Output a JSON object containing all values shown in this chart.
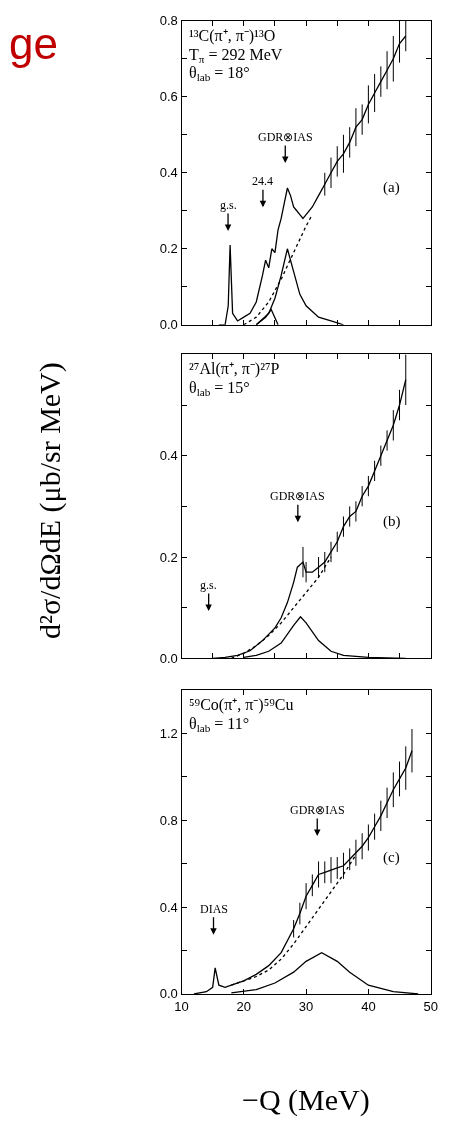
{
  "chart_data": [
    {
      "type": "line",
      "title": "ge",
      "xlim": [
        10,
        50
      ],
      "xticks": [
        10,
        15,
        20,
        25,
        30,
        35,
        40,
        45,
        50
      ],
      "ylim": [
        0,
        0.8
      ],
      "yticks": [
        {
          "value": 0,
          "label": "0.0"
        },
        {
          "value": 0.1,
          "label": null
        },
        {
          "value": 0.2,
          "label": "0.2"
        },
        {
          "value": 0.3,
          "label": null
        },
        {
          "value": 0.4,
          "label": "0.4"
        },
        {
          "value": 0.5,
          "label": null
        },
        {
          "value": 0.6,
          "label": "0.6"
        },
        {
          "value": 0.7,
          "label": null
        },
        {
          "value": 0.8,
          "label": "0.8"
        }
      ],
      "tick_labels": "y",
      "marker": "none",
      "series": [
        {
          "color": "#000000",
          "line_style": "solid",
          "x": [
            16,
            17,
            17.5,
            17.8,
            18.2,
            19,
            20,
            21,
            22,
            23,
            23.5,
            24,
            24.5,
            25,
            25.5,
            26,
            26.5,
            27,
            27.5,
            28,
            28.5,
            29,
            29.5,
            30,
            31,
            32,
            33,
            34,
            35,
            36,
            37,
            38,
            39,
            40,
            41,
            42,
            43,
            44,
            45,
            46
          ],
          "values": [
            0.0,
            0.0,
            0.05,
            0.21,
            0.03,
            0.01,
            0.02,
            0.03,
            0.06,
            0.13,
            0.17,
            0.15,
            0.2,
            0.19,
            0.25,
            0.28,
            0.32,
            0.36,
            0.34,
            0.31,
            0.3,
            0.29,
            0.28,
            0.29,
            0.31,
            0.34,
            0.37,
            0.4,
            0.43,
            0.45,
            0.48,
            0.52,
            0.54,
            0.58,
            0.61,
            0.64,
            0.67,
            0.7,
            0.74,
            0.76
          ],
          "errors": [
            null,
            null,
            null,
            null,
            null,
            null,
            null,
            null,
            null,
            null,
            null,
            null,
            null,
            null,
            null,
            null,
            null,
            null,
            null,
            null,
            null,
            null,
            null,
            null,
            null,
            null,
            0.03,
            0.04,
            0.04,
            0.05,
            0.04,
            0.05,
            0.04,
            0.05,
            0.05,
            0.04,
            0.05,
            0.06,
            0.05,
            0.04
          ]
        },
        {
          "color": "#000000",
          "line_style": "dotted",
          "x": [
            20,
            22,
            24,
            26,
            28,
            30,
            31
          ],
          "values": [
            0.0,
            0.02,
            0.06,
            0.12,
            0.19,
            0.26,
            0.29
          ]
        },
        {
          "color": "#000000",
          "line_style": "solid",
          "x": [
            22,
            23.5,
            24.4,
            25.5
          ],
          "values": [
            0.0,
            0.02,
            0.04,
            0.0
          ]
        },
        {
          "color": "#000000",
          "line_style": "solid",
          "x": [
            22,
            24,
            25,
            26,
            27,
            28,
            29,
            30,
            32,
            34,
            36
          ],
          "values": [
            0.0,
            0.03,
            0.07,
            0.13,
            0.2,
            0.14,
            0.08,
            0.05,
            0.02,
            0.01,
            0.0
          ]
        }
      ],
      "annotations": [
        "¹³C(π⁺, π⁻)¹³O",
        "T$_{π}$ = 292 MeV",
        "θ$_{lab}$ = 18°",
        "(a)",
        "g.s.",
        "24.4",
        "GDR⊗IAS"
      ]
    },
    {
      "type": "line",
      "ylabel": "d²σ/dΩdE (μb/sr MeV)",
      "xlim": [
        10,
        50
      ],
      "xticks": [
        10,
        15,
        20,
        25,
        30,
        35,
        40,
        45,
        50
      ],
      "ylim": [
        0,
        0.6
      ],
      "yticks": [
        {
          "value": 0,
          "label": "0.0"
        },
        {
          "value": 0.1,
          "label": null
        },
        {
          "value": 0.2,
          "label": "0.2"
        },
        {
          "value": 0.3,
          "label": null
        },
        {
          "value": 0.4,
          "label": "0.4"
        },
        {
          "value": 0.5,
          "label": null
        },
        {
          "value": 0.6,
          "label": null
        }
      ],
      "tick_labels": "y",
      "marker": "none",
      "series": [
        {
          "color": "#000000",
          "line_style": "solid",
          "x": [
            15,
            17,
            19,
            21,
            23,
            25,
            26,
            27,
            28,
            28.6,
            29.5,
            30,
            31,
            32,
            33,
            34,
            35,
            36,
            37,
            38,
            39,
            40,
            41,
            42,
            43,
            44,
            45,
            46
          ],
          "values": [
            0.0,
            0.002,
            0.006,
            0.015,
            0.035,
            0.06,
            0.08,
            0.11,
            0.15,
            0.18,
            0.19,
            0.17,
            0.17,
            0.18,
            0.19,
            0.21,
            0.23,
            0.26,
            0.28,
            0.29,
            0.32,
            0.34,
            0.37,
            0.4,
            0.43,
            0.46,
            0.5,
            0.55
          ],
          "errors": [
            null,
            null,
            null,
            null,
            null,
            null,
            null,
            null,
            null,
            null,
            0.03,
            0.02,
            null,
            0.02,
            0.02,
            0.02,
            0.02,
            0.02,
            0.02,
            0.02,
            0.02,
            0.02,
            0.02,
            0.02,
            0.02,
            0.03,
            0.03,
            0.05
          ]
        },
        {
          "color": "#000000",
          "line_style": "dotted",
          "x": [
            18,
            20,
            22,
            24,
            26,
            28,
            30,
            32,
            34
          ],
          "values": [
            0.0,
            0.01,
            0.025,
            0.045,
            0.07,
            0.1,
            0.13,
            0.16,
            0.2
          ]
        },
        {
          "color": "#000000",
          "line_style": "solid",
          "x": [
            20,
            22,
            24,
            26,
            28,
            29.1,
            30,
            32,
            34,
            36,
            40,
            46
          ],
          "values": [
            0.002,
            0.006,
            0.014,
            0.03,
            0.065,
            0.082,
            0.07,
            0.035,
            0.014,
            0.006,
            0.002,
            0.0
          ]
        }
      ],
      "annotations": [
        "²⁷Al(π⁺, π⁻)²⁷P",
        "θ$_{lab}$ = 15°",
        "(b)",
        "g.s.",
        "GDR⊗IAS"
      ]
    },
    {
      "type": "line",
      "xlabel": "−Q (MeV)",
      "xlim": [
        10,
        50
      ],
      "xticks": [
        10,
        20,
        30,
        40,
        50
      ],
      "ylim": [
        0,
        1.4
      ],
      "yticks": [
        {
          "value": 0,
          "label": "0.0"
        },
        {
          "value": 0.2,
          "label": null
        },
        {
          "value": 0.4,
          "label": "0.4"
        },
        {
          "value": 0.6,
          "label": null
        },
        {
          "value": 0.8,
          "label": "0.8"
        },
        {
          "value": 1.0,
          "label": null
        },
        {
          "value": 1.2,
          "label": "1.2"
        },
        {
          "value": 1.4,
          "label": null
        }
      ],
      "marker": "none",
      "series": [
        {
          "color": "#000000",
          "line_style": "solid",
          "x": [
            12,
            14,
            15,
            15.4,
            16,
            17,
            18,
            20,
            22,
            24,
            26,
            28,
            29,
            30,
            31,
            32,
            33,
            34,
            35,
            36,
            37,
            38,
            39,
            40,
            41,
            42,
            43,
            44,
            45,
            46,
            47
          ],
          "values": [
            0.0,
            0.01,
            0.03,
            0.12,
            0.04,
            0.03,
            0.04,
            0.06,
            0.09,
            0.13,
            0.19,
            0.3,
            0.37,
            0.45,
            0.5,
            0.55,
            0.56,
            0.57,
            0.58,
            0.59,
            0.62,
            0.65,
            0.68,
            0.72,
            0.77,
            0.82,
            0.88,
            0.94,
            0.99,
            1.04,
            1.12
          ],
          "errors": [
            null,
            null,
            null,
            null,
            null,
            null,
            null,
            null,
            null,
            null,
            null,
            0.04,
            0.05,
            0.06,
            0.05,
            0.06,
            0.05,
            0.06,
            0.05,
            0.06,
            0.05,
            0.06,
            0.06,
            0.06,
            0.06,
            0.07,
            0.07,
            0.08,
            0.08,
            0.1,
            0.1
          ]
        },
        {
          "color": "#000000",
          "line_style": "dotted",
          "x": [
            18,
            20,
            22,
            24,
            26,
            28,
            30,
            32,
            34,
            36,
            38
          ],
          "values": [
            0.04,
            0.06,
            0.08,
            0.11,
            0.16,
            0.23,
            0.31,
            0.39,
            0.47,
            0.55,
            0.64
          ]
        },
        {
          "color": "#000000",
          "line_style": "solid",
          "x": [
            18,
            22,
            25,
            28,
            30,
            32.5,
            35,
            37,
            40,
            44,
            48
          ],
          "values": [
            0.005,
            0.02,
            0.05,
            0.1,
            0.15,
            0.19,
            0.15,
            0.1,
            0.04,
            0.01,
            0.0
          ]
        }
      ],
      "annotations": [
        "⁵⁹Co(π⁺, π⁻)⁵⁹Cu",
        "θ$_{lab}$ = 11°",
        "(c)",
        "DIAS",
        "GDR⊗IAS"
      ]
    }
  ]
}
